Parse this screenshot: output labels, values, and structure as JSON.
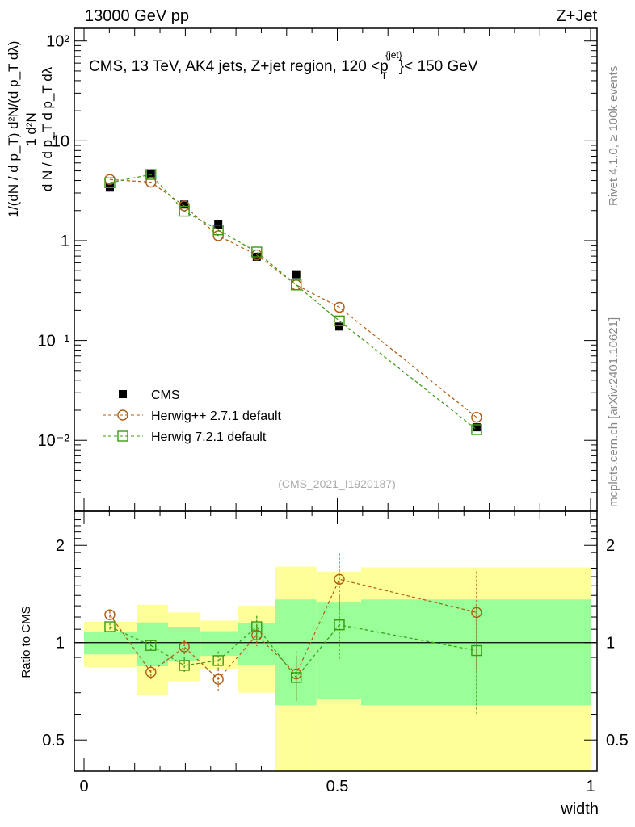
{
  "header": {
    "left": "13000 GeV pp",
    "right": "Z+Jet"
  },
  "side": {
    "rivet": "Rivet 4.1.0, ≥ 100k events",
    "mcplots": "mcplots.cern.ch [arXiv:2401.10621]"
  },
  "chart_data": [
    {
      "type": "scatter",
      "title": "CMS, 13 TeV, AK4 jets, Z+jet region, 120 <p_T^{jet}< 150 GeV",
      "title_main": "CMS, 13 TeV, AK4 jets, Z+jet region, 120 <p",
      "title_sup": "{jet}",
      "title_sub": "T",
      "title_end": "}< 150 GeV",
      "ylabel": "1/(dN / d p_T) d²N/(d p_T dλ)",
      "ylabel_den": "d N / d p_T  d p_T dλ",
      "ylabel_num": "1      d²N",
      "yscale": "log",
      "ylim": [
        0.00195,
        134
      ],
      "xlim": [
        0,
        1
      ],
      "ytick_labels": [
        "10⁻²",
        "10⁻¹",
        "1",
        "10",
        "10²"
      ],
      "ytick_values": [
        0.01,
        0.1,
        1,
        10,
        100
      ],
      "annotation": "(CMS_2021_I1920187)",
      "x": [
        0.051,
        0.132,
        0.198,
        0.265,
        0.341,
        0.419,
        0.504,
        0.775
      ],
      "series": [
        {
          "name": "CMS",
          "color": "#000000",
          "marker": "filled-square",
          "values": [
            3.4,
            4.7,
            2.3,
            1.45,
            0.69,
            0.46,
            0.138,
            0.0135
          ]
        },
        {
          "name": "Herwig++ 2.7.1 default",
          "color": "#b05a10",
          "marker": "open-circle",
          "values": [
            4.1,
            3.85,
            2.23,
            1.12,
            0.72,
            0.36,
            0.215,
            0.017
          ]
        },
        {
          "name": "Herwig 7.2.1 default",
          "color": "#3a9a10",
          "marker": "open-square",
          "values": [
            3.8,
            4.6,
            1.97,
            1.28,
            0.77,
            0.36,
            0.157,
            0.0128
          ]
        }
      ],
      "legend": "bottom-left"
    },
    {
      "type": "scatter",
      "ylabel": "Ratio to CMS",
      "xlabel": "width",
      "yscale": "log",
      "ylim": [
        0.4,
        2.55
      ],
      "xlim": [
        0,
        1
      ],
      "xtick_labels": [
        "0",
        "0.5",
        "1"
      ],
      "xtick_values": [
        0,
        0.5,
        1
      ],
      "ytick_labels": [
        "0.5",
        "1",
        "2"
      ],
      "ytick_values": [
        0.5,
        1,
        2
      ],
      "bin_edges": [
        0,
        0.105,
        0.166,
        0.23,
        0.303,
        0.378,
        0.459,
        0.547,
        1.0
      ],
      "band_inner": {
        "color": "#99ff99",
        "lo": [
          0.92,
          0.845,
          0.875,
          0.91,
          0.85,
          0.64,
          0.67,
          0.64
        ],
        "hi": [
          1.08,
          1.155,
          1.12,
          1.085,
          1.15,
          1.36,
          1.33,
          1.36
        ]
      },
      "band_outer": {
        "color": "#ffff99",
        "lo": [
          0.84,
          0.69,
          0.76,
          0.83,
          0.7,
          0.25,
          0.25,
          0.25
        ],
        "hi": [
          1.16,
          1.31,
          1.24,
          1.17,
          1.3,
          1.72,
          1.66,
          1.71
        ]
      },
      "x": [
        0.051,
        0.132,
        0.198,
        0.265,
        0.341,
        0.419,
        0.504,
        0.775
      ],
      "series": [
        {
          "name": "Herwig++ 2.7.1 default",
          "color": "#b05a10",
          "marker": "open-circle",
          "values": [
            1.22,
            0.81,
            0.97,
            0.77,
            1.055,
            0.8,
            1.57,
            1.24
          ],
          "errors": [
            0.03,
            0.04,
            0.05,
            0.06,
            0.08,
            0.14,
            0.32,
            0.42
          ]
        },
        {
          "name": "Herwig 7.2.1 default",
          "color": "#3a9a10",
          "marker": "open-square",
          "values": [
            1.12,
            0.98,
            0.85,
            0.88,
            1.12,
            0.78,
            1.135,
            0.945
          ],
          "errors": [
            0.03,
            0.04,
            0.05,
            0.06,
            0.09,
            0.12,
            0.26,
            0.35
          ]
        }
      ]
    }
  ]
}
